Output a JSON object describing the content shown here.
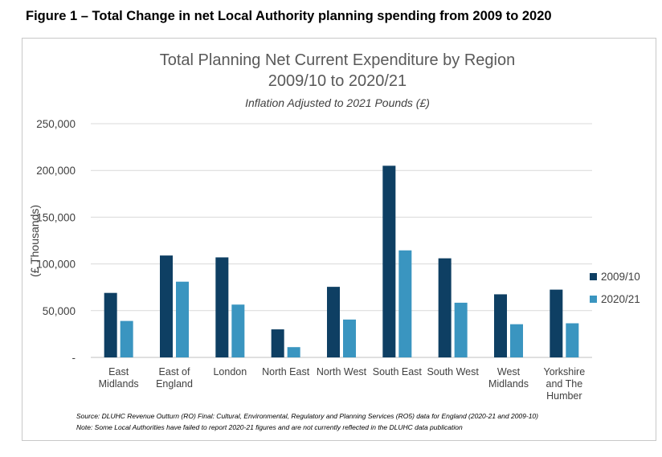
{
  "figure_caption": "Figure 1 – Total Change in net Local Authority planning spending from 2009 to 2020",
  "chart_data": {
    "type": "bar",
    "title_line1": "Total Planning Net Current Expenditure by Region",
    "title_line2": "2009/10 to 2020/21",
    "subtitle": "Inflation Adjusted to 2021 Pounds (£)",
    "ylabel": "(£ Thousands)",
    "xlabel": "",
    "ylim": [
      0,
      250000
    ],
    "yticks": [
      "-",
      "50,000",
      "100,000",
      "150,000",
      "200,000",
      "250,000"
    ],
    "grid": true,
    "legend_position": "right",
    "categories": [
      [
        "East",
        "Midlands"
      ],
      [
        "East of",
        "England"
      ],
      [
        "London"
      ],
      [
        "North East"
      ],
      [
        "North West"
      ],
      [
        "South East"
      ],
      [
        "South West"
      ],
      [
        "West",
        "Midlands"
      ],
      [
        "Yorkshire",
        "and The",
        "Humber"
      ]
    ],
    "series": [
      {
        "name": "2009/10",
        "color": "#0e3f63",
        "values": [
          69000,
          109000,
          107000,
          30000,
          75500,
          205000,
          106000,
          67500,
          72500
        ]
      },
      {
        "name": "2020/21",
        "color": "#3a95c0",
        "values": [
          39000,
          81000,
          56500,
          11000,
          40500,
          114500,
          58500,
          35500,
          36500
        ]
      }
    ],
    "source_line1": "Source: DLUHC Revenue Outturn (RO) Final: Cultural, Environmental, Regulatory and Planning Services (RO5) data for England (2020-21 and 2009-10)",
    "source_line2": "Note: Some Local Authorities have failed to report 2020-21 figures and are not currently reflected in the DLUHC data publication"
  }
}
